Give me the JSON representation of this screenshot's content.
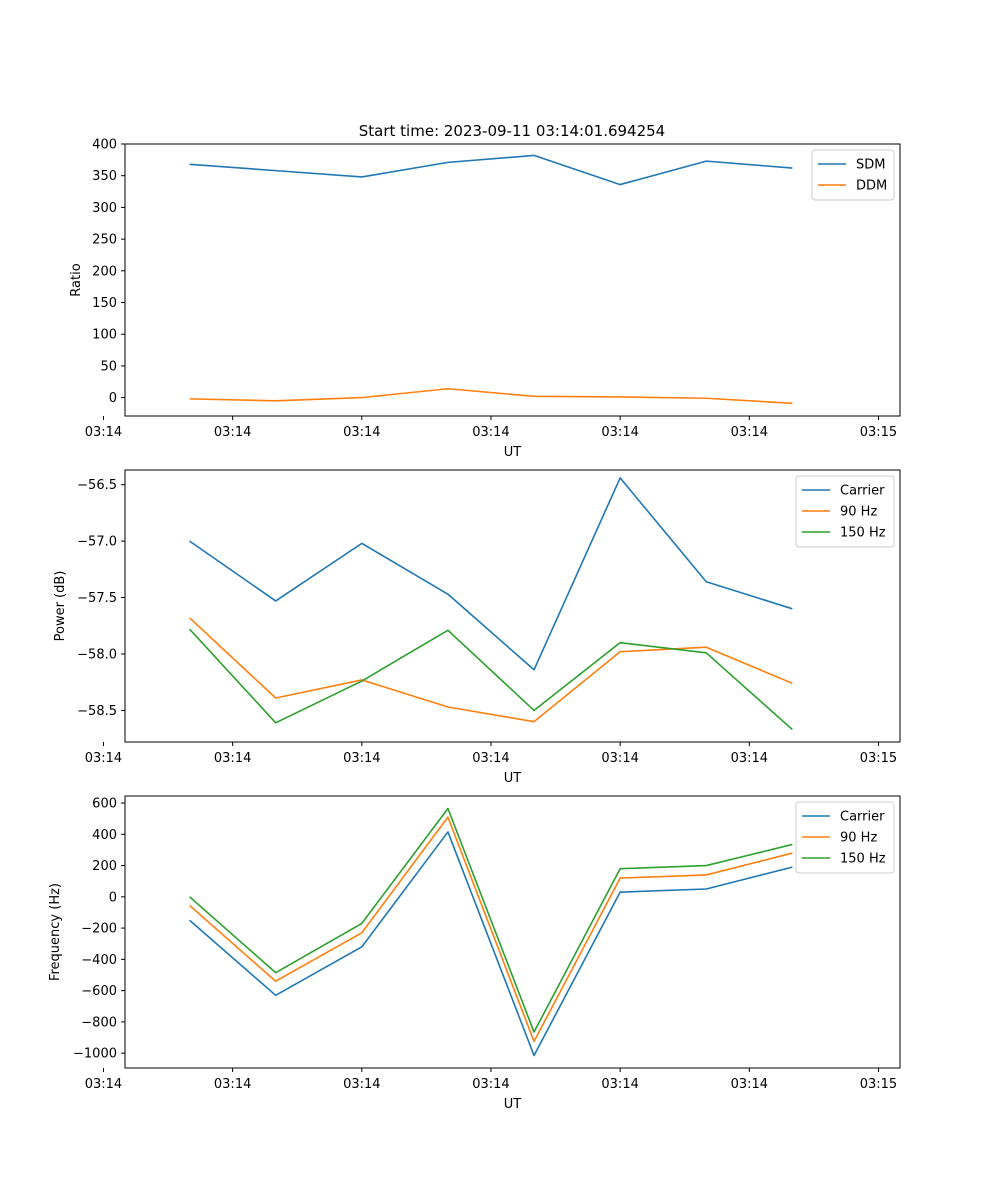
{
  "figure_title": "Start time: 2023-09-11 03:14:01.694254",
  "chart_data": [
    {
      "type": "line",
      "title": "Start time: 2023-09-11 03:14:01.694254",
      "xlabel": "UT",
      "ylabel": "Ratio",
      "x": [
        1,
        2,
        3,
        4,
        5,
        6,
        7,
        8
      ],
      "xlim": [
        0.25,
        9.25
      ],
      "xticks": [
        0,
        1.5,
        3,
        4.5,
        6,
        7.5,
        9
      ],
      "xtick_labels": [
        "03:14",
        "03:14",
        "03:14",
        "03:14",
        "03:14",
        "03:14",
        "03:15"
      ],
      "ylim": [
        -29,
        400
      ],
      "yticks": [
        0,
        50,
        100,
        150,
        200,
        250,
        300,
        350,
        400
      ],
      "ytick_labels": [
        "0",
        "50",
        "100",
        "150",
        "200",
        "250",
        "300",
        "350",
        "400"
      ],
      "legend_position": "top-right",
      "series": [
        {
          "name": "SDM",
          "color": "#1f77b4",
          "values": [
            368,
            358,
            348,
            371,
            382,
            336,
            373,
            362
          ]
        },
        {
          "name": "DDM",
          "color": "#ff7f0e",
          "values": [
            -2,
            -5,
            0,
            14,
            2,
            1,
            -1,
            -9
          ]
        }
      ]
    },
    {
      "type": "line",
      "title": "",
      "xlabel": "UT",
      "ylabel": "Power (dB)",
      "x": [
        1,
        2,
        3,
        4,
        5,
        6,
        7,
        8
      ],
      "xlim": [
        0.25,
        9.25
      ],
      "xticks": [
        0,
        1.5,
        3,
        4.5,
        6,
        7.5,
        9
      ],
      "xtick_labels": [
        "03:14",
        "03:14",
        "03:14",
        "03:14",
        "03:14",
        "03:14",
        "03:15"
      ],
      "ylim": [
        -58.78,
        -56.37
      ],
      "yticks": [
        -58.5,
        -58.0,
        -57.5,
        -57.0,
        -56.5
      ],
      "ytick_labels": [
        "−58.5",
        "−58.0",
        "−57.5",
        "−57.0",
        "−56.5"
      ],
      "legend_position": "top-right",
      "series": [
        {
          "name": "Carrier",
          "color": "#1f77b4",
          "values": [
            -57.0,
            -57.53,
            -57.02,
            -57.47,
            -58.14,
            -56.44,
            -57.36,
            -57.6
          ]
        },
        {
          "name": "90 Hz",
          "color": "#ff7f0e",
          "values": [
            -57.68,
            -58.39,
            -58.23,
            -58.47,
            -58.6,
            -57.98,
            -57.94,
            -58.26
          ]
        },
        {
          "name": "150 Hz",
          "color": "#2ca02c",
          "values": [
            -57.78,
            -58.61,
            -58.24,
            -57.79,
            -58.5,
            -57.9,
            -57.99,
            -58.67
          ]
        }
      ]
    },
    {
      "type": "line",
      "title": "",
      "xlabel": "UT",
      "ylabel": "Frequency (Hz)",
      "x": [
        1,
        2,
        3,
        4,
        5,
        6,
        7,
        8
      ],
      "xlim": [
        0.25,
        9.25
      ],
      "xticks": [
        0,
        1.5,
        3,
        4.5,
        6,
        7.5,
        9
      ],
      "xtick_labels": [
        "03:14",
        "03:14",
        "03:14",
        "03:14",
        "03:14",
        "03:14",
        "03:15"
      ],
      "ylim": [
        -1095,
        645
      ],
      "yticks": [
        -1000,
        -800,
        -600,
        -400,
        -200,
        0,
        200,
        400,
        600
      ],
      "ytick_labels": [
        "−1000",
        "−800",
        "−600",
        "−400",
        "−200",
        "0",
        "200",
        "400",
        "600"
      ],
      "legend_position": "top-right",
      "series": [
        {
          "name": "Carrier",
          "color": "#1f77b4",
          "values": [
            -150,
            -630,
            -320,
            415,
            -1015,
            30,
            50,
            190
          ]
        },
        {
          "name": "90 Hz",
          "color": "#ff7f0e",
          "values": [
            -55,
            -540,
            -230,
            510,
            -925,
            120,
            140,
            280
          ]
        },
        {
          "name": "150 Hz",
          "color": "#2ca02c",
          "values": [
            0,
            -485,
            -170,
            565,
            -865,
            180,
            200,
            335
          ]
        }
      ]
    }
  ]
}
